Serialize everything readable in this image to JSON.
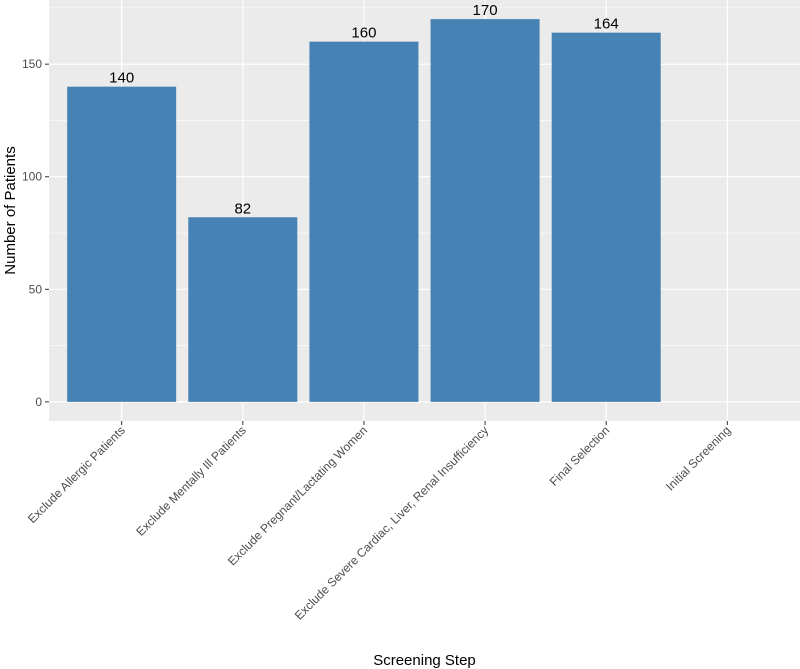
{
  "chart_data": {
    "type": "bar",
    "title": "",
    "xlabel": "Screening Step",
    "ylabel": "Number of Patients",
    "categories": [
      "Exclude Allergic Patients",
      "Exclude Mentally Ill Patients",
      "Exclude Pregnant/Lactating Women",
      "Exclude Severe Cardiac, Liver, Renal Insufficiency",
      "Final Selection",
      "Initial Screening"
    ],
    "values": [
      140,
      82,
      160,
      170,
      164,
      null
    ],
    "data_labels": [
      "140",
      "82",
      "160",
      "170",
      "164",
      ""
    ],
    "yticks": [
      0,
      50,
      100,
      150
    ],
    "ylim": [
      -8.5,
      178.5
    ],
    "grid": true,
    "legend": "none",
    "colors": {
      "bar": "#4682B4",
      "panel": "#EBEBEB",
      "grid": "#FFFFFF"
    }
  }
}
